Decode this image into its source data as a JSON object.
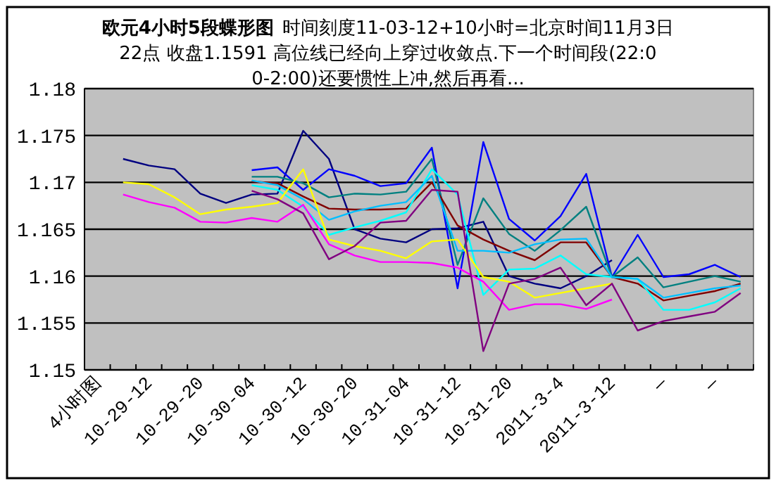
{
  "chart_data": {
    "type": "line",
    "title": "欧元4小时5段蝶形图",
    "subtitle": "时间刻度11-03-12+10小时=北京时间11月3日22点 收盘1.1591 高位线已经向上穿过收敛点.下一个时间段(22:00-2:00)还要惯性上冲,然后再看...",
    "categories": [
      "4小时图",
      null,
      "10-29-12",
      null,
      "10-29-20",
      null,
      "10-30-04",
      null,
      "10-30-12",
      null,
      "10-30-20",
      null,
      "10-31-04",
      null,
      "10-31-12",
      null,
      "10-31-20",
      null,
      "2011-3-4",
      null,
      "2011-3-12",
      null,
      "—",
      null,
      "—",
      null
    ],
    "series": [
      {
        "color": "#000080",
        "values": [
          null,
          1.1725,
          1.1718,
          1.1714,
          1.1688,
          1.1678,
          1.1687,
          1.1688,
          1.1755,
          1.1725,
          1.165,
          1.164,
          1.1636,
          1.165,
          1.1651,
          1.1658,
          1.16,
          1.1592,
          1.1587,
          1.16,
          1.1617,
          null,
          null,
          null,
          null,
          null
        ]
      },
      {
        "color": "#0000ff",
        "values": [
          null,
          null,
          null,
          null,
          null,
          null,
          1.1713,
          1.1716,
          1.1692,
          1.1714,
          1.1707,
          1.1696,
          1.1699,
          1.1737,
          1.1587,
          1.1743,
          1.1661,
          1.1638,
          1.1664,
          1.1709,
          1.1599,
          1.1644,
          1.1599,
          1.1602,
          1.1612,
          1.1599
        ]
      },
      {
        "color": "#008080",
        "values": [
          null,
          null,
          null,
          null,
          null,
          null,
          1.1706,
          1.1706,
          1.1699,
          1.1684,
          1.1688,
          1.1687,
          1.169,
          1.1725,
          1.1612,
          1.1683,
          1.1645,
          1.1627,
          1.1649,
          1.1674,
          1.1599,
          1.162,
          1.1588,
          1.1594,
          1.16,
          1.1594
        ]
      },
      {
        "color": "#800000",
        "values": [
          null,
          null,
          null,
          null,
          null,
          null,
          1.1701,
          1.1699,
          1.1685,
          1.1672,
          1.1671,
          1.1671,
          1.1672,
          1.17,
          1.1654,
          1.1639,
          1.1627,
          1.1617,
          1.1636,
          1.1636,
          1.1599,
          1.1592,
          1.1574,
          1.1579,
          1.1584,
          1.1592
        ]
      },
      {
        "color": "#00ffff",
        "values": [
          null,
          null,
          null,
          null,
          null,
          null,
          1.1697,
          1.1692,
          1.1674,
          1.1644,
          1.1652,
          1.1659,
          1.1668,
          1.1714,
          1.1687,
          1.158,
          1.1607,
          1.1608,
          1.1622,
          1.1602,
          1.1599,
          1.1597,
          1.1564,
          1.1564,
          1.1572,
          1.1587
        ]
      },
      {
        "color": "#00bfff",
        "values": [
          null,
          null,
          null,
          null,
          null,
          null,
          1.1702,
          1.1697,
          1.1682,
          1.166,
          1.1669,
          1.1675,
          1.1679,
          1.1707,
          1.1627,
          1.1627,
          1.1625,
          1.1634,
          1.1639,
          1.164,
          1.1599,
          1.1597,
          1.1577,
          1.1582,
          1.1587,
          1.159
        ]
      },
      {
        "color": "#ffff00",
        "values": [
          null,
          1.17,
          1.1698,
          1.1684,
          1.1666,
          1.1671,
          1.1674,
          1.1678,
          1.1714,
          1.1639,
          1.1632,
          1.1627,
          1.1619,
          1.1637,
          1.1639,
          1.1599,
          1.1594,
          1.1577,
          1.1582,
          1.1587,
          1.1592,
          null,
          null,
          null,
          null,
          null
        ]
      },
      {
        "color": "#ff00ff",
        "values": [
          null,
          1.1687,
          1.1679,
          1.1673,
          1.1658,
          1.1657,
          1.1662,
          1.1658,
          1.1676,
          1.1634,
          1.1622,
          1.1615,
          1.1615,
          1.1614,
          1.1609,
          1.1594,
          1.1564,
          1.157,
          1.157,
          1.1565,
          1.1575,
          null,
          null,
          null,
          null,
          null
        ]
      },
      {
        "color": "#800080",
        "values": [
          null,
          null,
          null,
          null,
          null,
          null,
          1.1691,
          1.1682,
          1.1667,
          1.1618,
          1.1632,
          1.1657,
          1.1659,
          1.1692,
          1.169,
          1.152,
          1.1592,
          1.1597,
          1.1609,
          1.1569,
          1.1592,
          1.1542,
          1.1552,
          1.1557,
          1.1562,
          1.1582
        ]
      }
    ],
    "ylim": [
      1.15,
      1.18
    ],
    "yticks": [
      1.15,
      1.155,
      1.16,
      1.165,
      1.17,
      1.175,
      1.18
    ],
    "grid": "y"
  }
}
